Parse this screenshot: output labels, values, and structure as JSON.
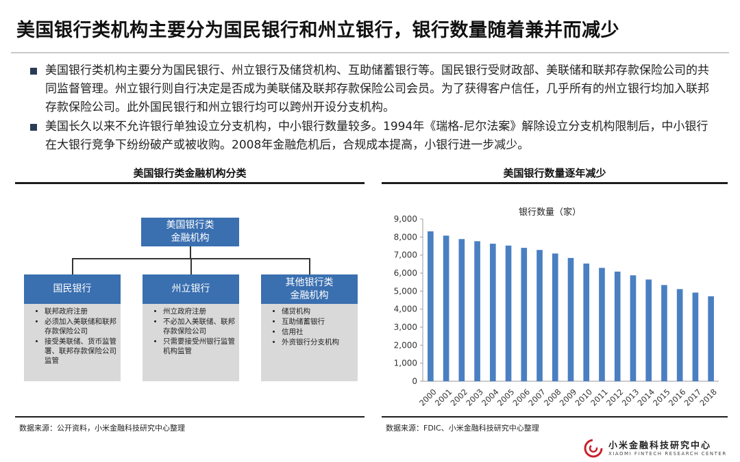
{
  "title": "美国银行类机构主要分为国民银行和州立银行，银行数量随着兼并而减少",
  "bullets": [
    "美国银行类机构主要分为国民银行、州立银行及储贷机构、互助储蓄银行等。国民银行受财政部、美联储和联邦存款保险公司的共同监督管理。州立银行则自行决定是否成为美联储及联邦存款保险公司会员。为了获得客户信任，几乎所有的州立银行均加入联邦存款保险公司。此外国民银行和州立银行均可以跨州开设分支机构。",
    "美国长久以来不允许银行单独设立分支机构，中小银行数量较多。1994年《瑞格-尼尔法案》解除设立分支机构限制后，中小银行在大银行竞争下纷纷破产或被收购。2008年金融危机后，合规成本提高，小银行进一步减少。"
  ],
  "left_panel": {
    "title": "美国银行类金融机构分类",
    "source": "数据来源：公开资料，小米金融科技研究中心整理",
    "top_node": [
      "美国银行类",
      "金融机构"
    ],
    "columns": [
      {
        "header": [
          "国民银行"
        ],
        "items": [
          "联邦政府注册",
          "必须加入美联储和联邦存款保险公司",
          "接受美联储、货币监管署、联邦存款保险公司监管"
        ]
      },
      {
        "header": [
          "州立银行"
        ],
        "items": [
          "州立政府注册",
          "不必加入美联储、联邦存款保险公司",
          "只需要接受州银行监管机构监管"
        ]
      },
      {
        "header": [
          "其他银行类",
          "金融机构"
        ],
        "items": [
          "储贷机构",
          "互助储蓄银行",
          "信用社",
          "外资银行分支机构"
        ]
      }
    ]
  },
  "right_panel": {
    "title": "美国银行数量逐年减少",
    "source": "数据来源：FDIC、小米金融科技研究中心整理"
  },
  "chart_data": {
    "type": "bar",
    "title": "银行数量（家）",
    "categories": [
      "2000",
      "2001",
      "2002",
      "2003",
      "2004",
      "2005",
      "2006",
      "2007",
      "2008",
      "2009",
      "2010",
      "2011",
      "2012",
      "2013",
      "2014",
      "2015",
      "2016",
      "2017",
      "2018"
    ],
    "values": [
      8315,
      8079,
      7887,
      7769,
      7630,
      7526,
      7401,
      7283,
      7086,
      6840,
      6529,
      6291,
      6083,
      5876,
      5643,
      5338,
      5112,
      4918,
      4715
    ],
    "ylim": [
      0,
      9000
    ],
    "yticks": [
      "0",
      "1,000",
      "2,000",
      "3,000",
      "4,000",
      "5,000",
      "6,000",
      "7,000",
      "8,000",
      "9,000"
    ],
    "grid": false,
    "bar_color": "#4a7fc1"
  },
  "logo": {
    "name": "小米金融科技研究中心",
    "sub": "XIAOMI FINTECH RESEARCH CENTER",
    "color": "#c8202b"
  }
}
